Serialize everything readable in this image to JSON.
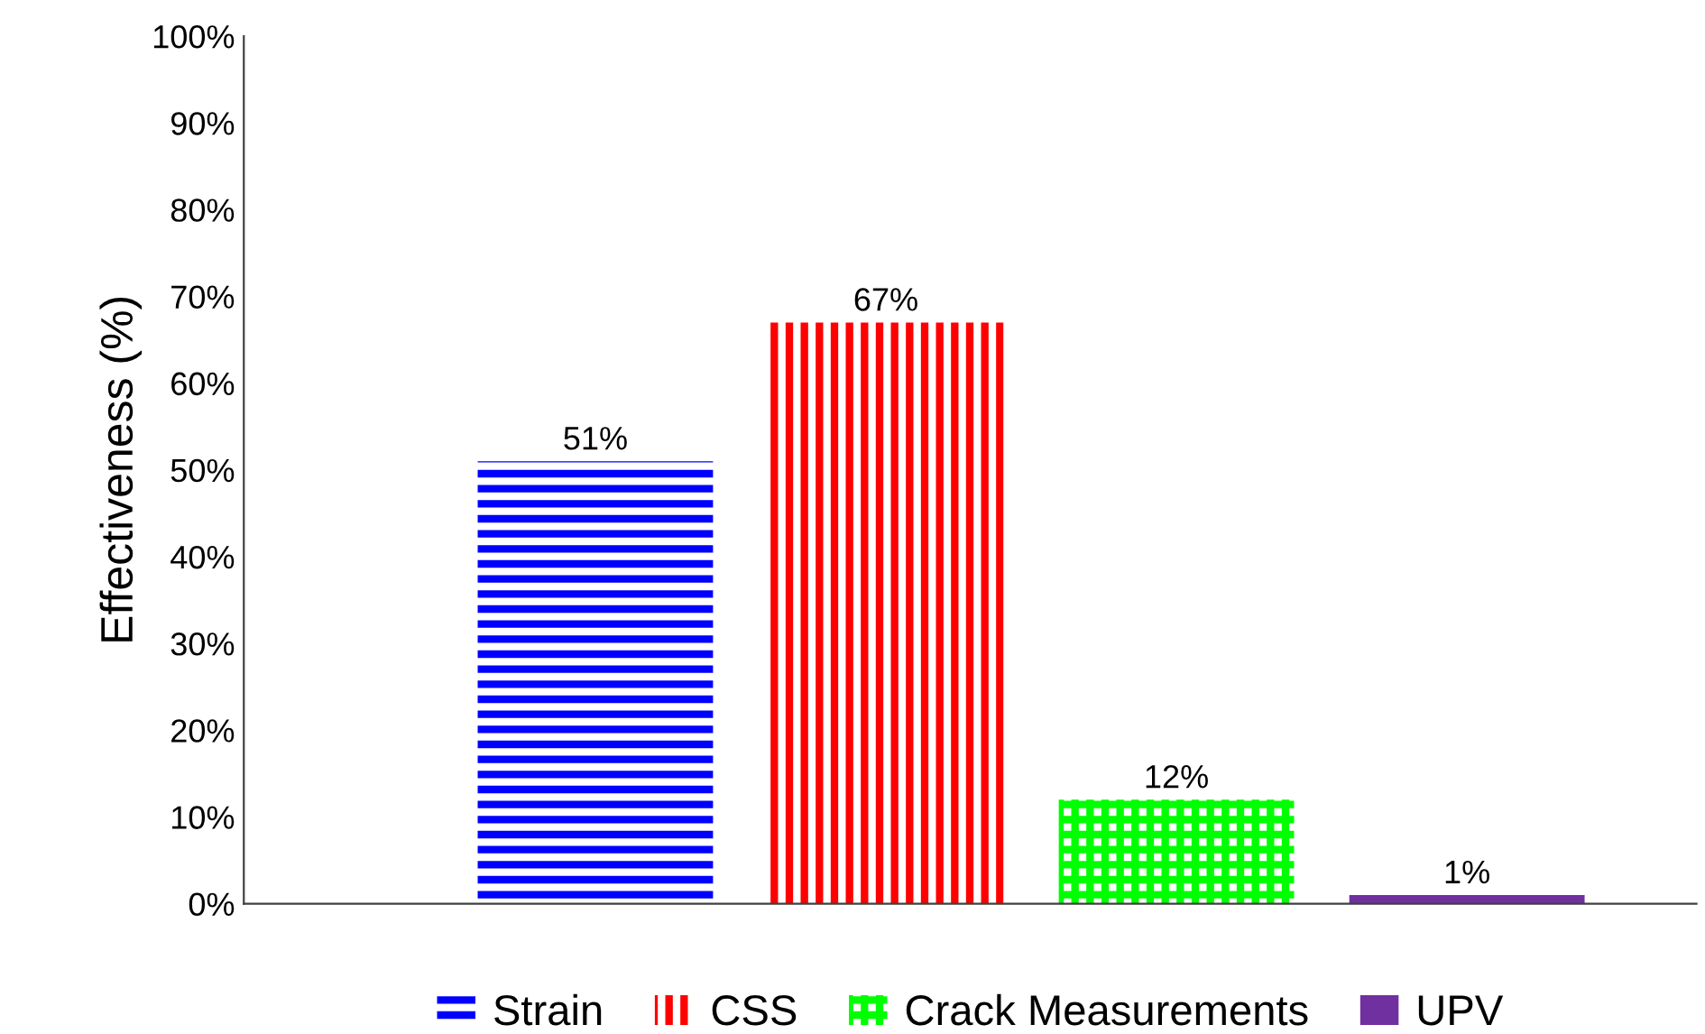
{
  "chart_data": {
    "type": "bar",
    "ylabel": "Effectiveness (%)",
    "categories": [
      null
    ],
    "series": [
      {
        "name": "Strain",
        "color": "#0000ff",
        "values": [
          51
        ],
        "value_labels": [
          "51%"
        ]
      },
      {
        "name": "CSS",
        "color": "#ff0000",
        "values": [
          67
        ],
        "value_labels": [
          "67%"
        ]
      },
      {
        "name": "Crack Measurements",
        "color": "#00ff00",
        "values": [
          12
        ],
        "value_labels": [
          "12%"
        ]
      },
      {
        "name": "UPV",
        "color": "#7030a0",
        "values": [
          1
        ],
        "value_labels": [
          "1%"
        ]
      }
    ],
    "ylim": [
      0,
      100
    ],
    "yticks": [
      {
        "value": 0,
        "label": "0%"
      },
      {
        "value": 10,
        "label": "10%"
      },
      {
        "value": 20,
        "label": "20%"
      },
      {
        "value": 30,
        "label": "30%"
      },
      {
        "value": 40,
        "label": "40%"
      },
      {
        "value": 50,
        "label": "50%"
      },
      {
        "value": 60,
        "label": "60%"
      },
      {
        "value": 70,
        "label": "70%"
      },
      {
        "value": 80,
        "label": "80%"
      },
      {
        "value": 90,
        "label": "90%"
      },
      {
        "value": 100,
        "label": "100%"
      }
    ],
    "legend": "bottom",
    "grid": false
  }
}
